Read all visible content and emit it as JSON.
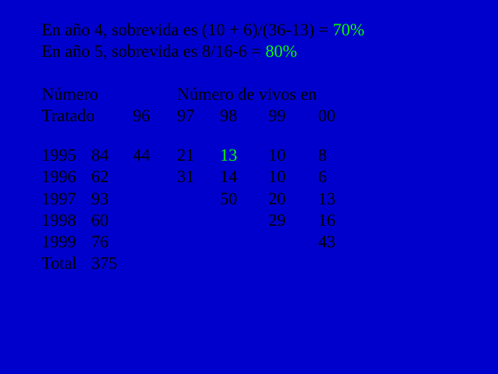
{
  "colors": {
    "background": "#0000cd",
    "text": "#000000",
    "highlight": "#00ff00"
  },
  "typography": {
    "font_family": "Times New Roman",
    "font_size_pt": 19
  },
  "intro": {
    "line1_prefix": "En año 4, sobrevida es (10 + 6)/(36-13) = ",
    "line1_pct": "70%",
    "line2_prefix": "En año 5, sobrevida es  8/16-6 = ",
    "line2_pct": "80%"
  },
  "header": {
    "col_numero": "Número",
    "col_tratado": "Tratado",
    "col_vivos_label": "Número de vivos en",
    "c96": "96",
    "c97": "97",
    "c98": "98",
    "c99": "99",
    "c00": "00"
  },
  "rows": [
    {
      "year": "1995",
      "trat": "84",
      "v96": "44",
      "v97": "21",
      "v98": "13",
      "v98_green": true,
      "v99": "10",
      "v00": "8"
    },
    {
      "year": "1996",
      "trat": "62",
      "v96": "",
      "v97": "31",
      "v98": "14",
      "v98_green": false,
      "v99": "10",
      "v00": "6"
    },
    {
      "year": "1997",
      "trat": "93",
      "v96": "",
      "v97": "",
      "v98": "50",
      "v98_green": false,
      "v99": "20",
      "v00": "13"
    },
    {
      "year": "1998",
      "trat": "60",
      "v96": "",
      "v97": "",
      "v98": "",
      "v98_green": false,
      "v99": "29",
      "v00": "16"
    },
    {
      "year": "1999",
      "trat": "76",
      "v96": "",
      "v97": "",
      "v98": "",
      "v98_green": false,
      "v99": "",
      "v00": "43"
    }
  ],
  "total": {
    "label": "Total",
    "trat": "375"
  }
}
